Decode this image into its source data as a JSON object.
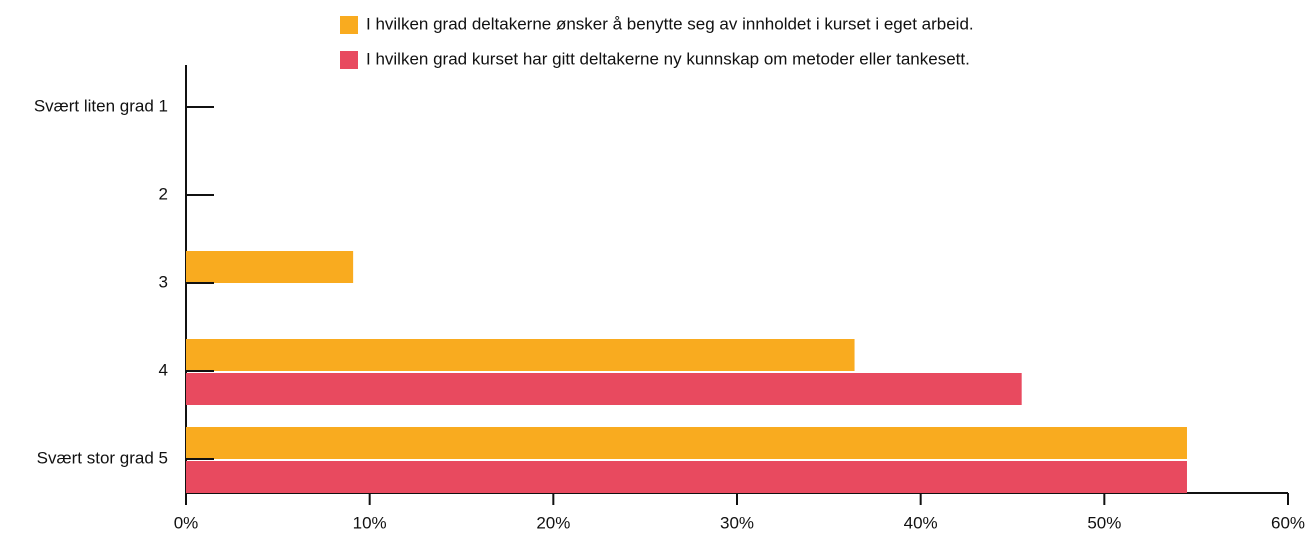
{
  "chart_data": {
    "type": "barh",
    "categories": [
      "Svært liten grad 1",
      "2",
      "3",
      "4",
      "Svært stor grad 5"
    ],
    "series": [
      {
        "name": "I hvilken grad deltakerne ønsker å benytte seg av innholdet i kurset i eget arbeid.",
        "color": "#f9ab1f",
        "values": [
          0,
          0,
          9.1,
          36.4,
          54.5
        ]
      },
      {
        "name": "I hvilken grad kurset har gitt deltakerne ny kunnskap om metoder eller tankesett.",
        "color": "#e84a5f",
        "values": [
          0,
          0,
          0,
          45.5,
          54.5
        ]
      }
    ],
    "xlim": [
      0,
      60
    ],
    "xticks": [
      {
        "value": 0,
        "label": "0%"
      },
      {
        "value": 10,
        "label": "10%"
      },
      {
        "value": 20,
        "label": "20%"
      },
      {
        "value": 30,
        "label": "30%"
      },
      {
        "value": 40,
        "label": "40%"
      },
      {
        "value": 50,
        "label": "50%"
      },
      {
        "value": 60,
        "label": "60%"
      }
    ],
    "legend": "top"
  }
}
